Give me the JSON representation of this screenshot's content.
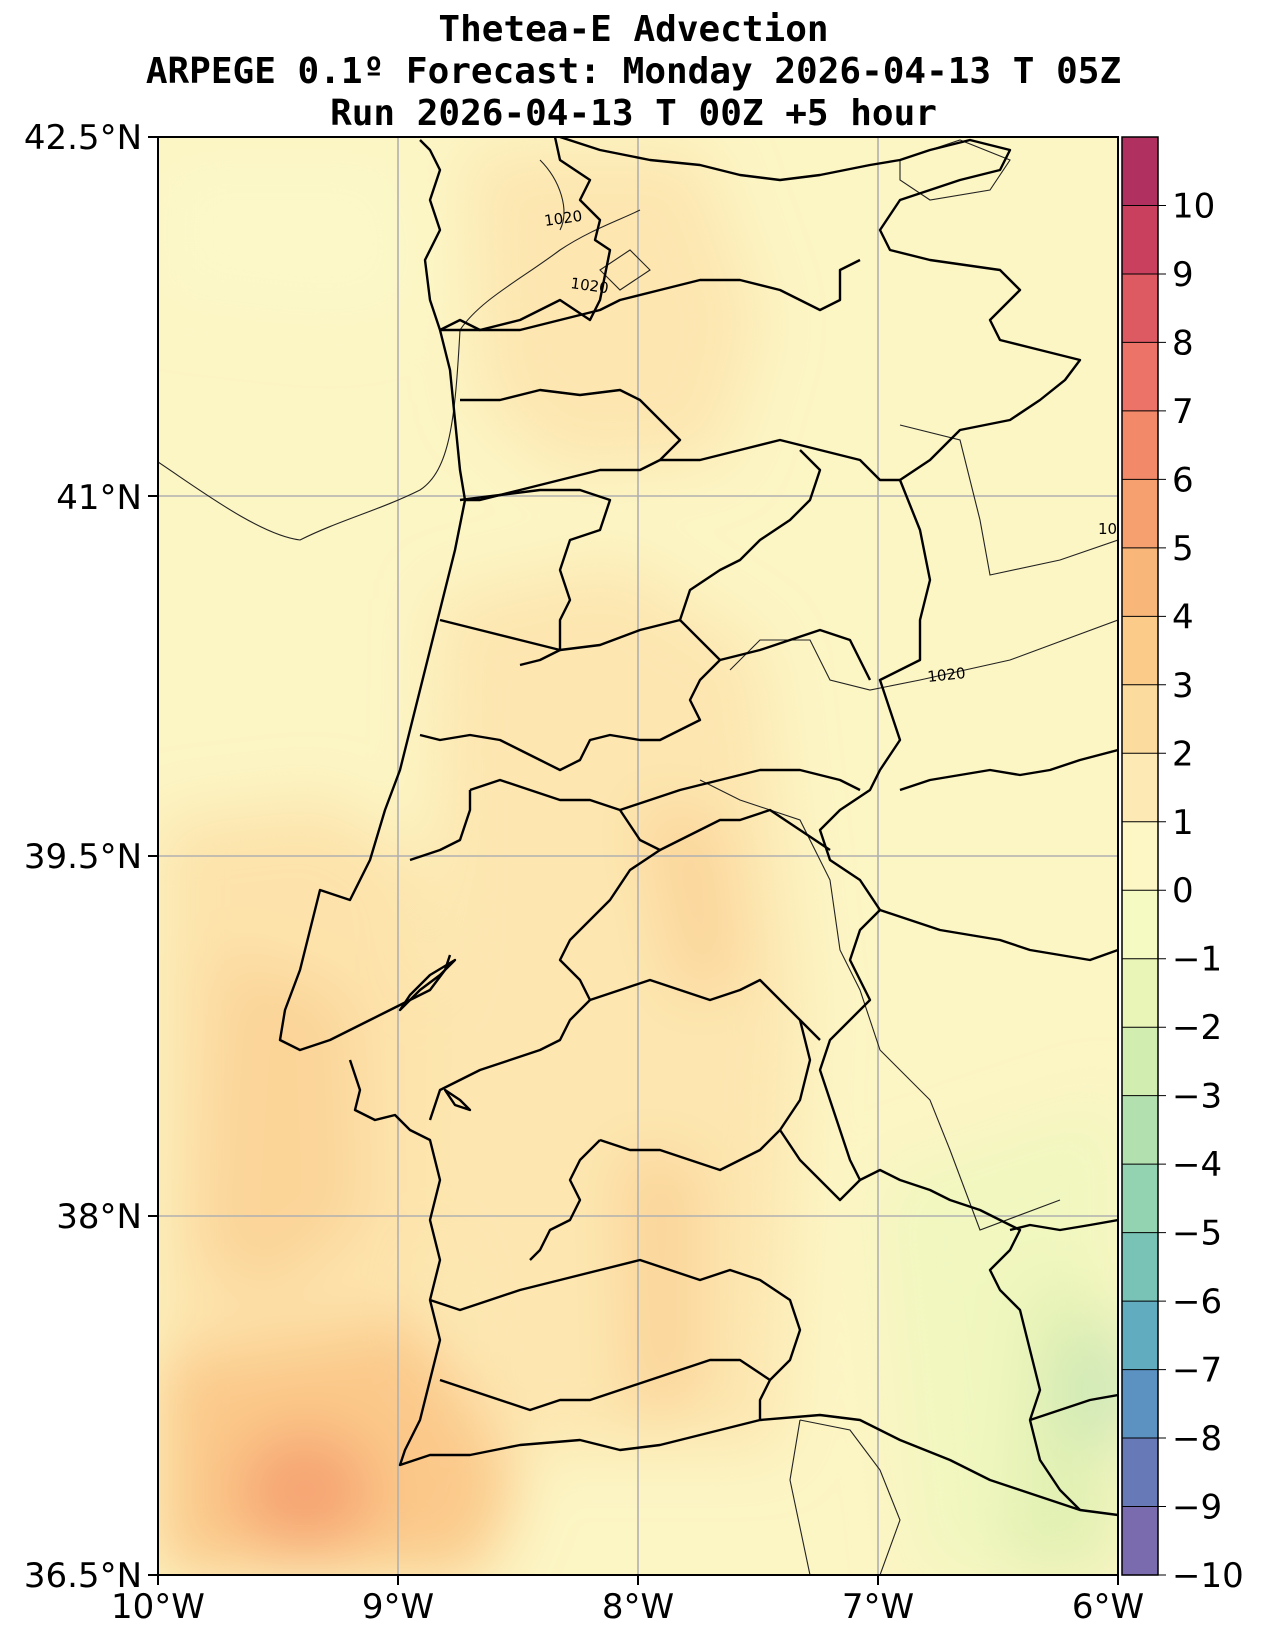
{
  "title": {
    "line1": "Thetea-E Advection",
    "line2": "ARPEGE 0.1º Forecast: Monday 2026-04-13 T 05Z",
    "line3": "Run 2026-04-13 T 00Z +5 hour"
  },
  "map": {
    "lon_range": [
      -10,
      -6
    ],
    "lat_range": [
      36.5,
      42.5
    ],
    "grid": true,
    "lat_labels": [
      "42.5°N",
      "41°N",
      "39.5°N",
      "38°N",
      "36.5°N"
    ],
    "lon_labels": [
      "10°W",
      "9°W",
      "8°W",
      "7°W",
      "6°W"
    ],
    "isobar_labels": [
      "1020",
      "1020",
      "1020",
      "10"
    ]
  },
  "colorbar": {
    "labels": [
      "10",
      "9",
      "8",
      "7",
      "6",
      "5",
      "4",
      "3",
      "2",
      "1",
      "0",
      "−1",
      "−2",
      "−3",
      "−4",
      "−5",
      "−6",
      "−7",
      "−8",
      "−9",
      "−10"
    ],
    "colors": [
      "#b03060",
      "#c9405e",
      "#dd5a62",
      "#eb7367",
      "#f28a69",
      "#f6a06f",
      "#f8b679",
      "#fbcb8a",
      "#fcdc9e",
      "#fde9b4",
      "#fcf7c4",
      "#f5f9c2",
      "#e9f5b7",
      "#d2edb0",
      "#b3e0af",
      "#93d3b2",
      "#78c2b6",
      "#62acc0",
      "#5b92c2",
      "#6879b7",
      "#7a6bae"
    ]
  }
}
